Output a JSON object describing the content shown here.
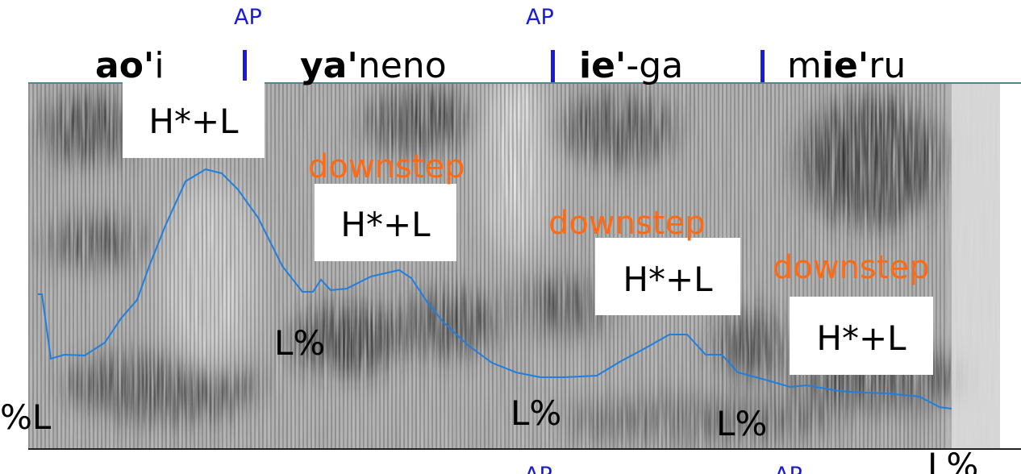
{
  "words": [
    {
      "parts": [
        {
          "text": "ao'",
          "bold": true
        },
        {
          "text": "i",
          "bold": false
        }
      ]
    },
    {
      "parts": [
        {
          "text": "ya'",
          "bold": true
        },
        {
          "text": "neno",
          "bold": false
        }
      ]
    },
    {
      "parts": [
        {
          "text": "ie'",
          "bold": true
        },
        {
          "text": "-ga",
          "bold": false
        }
      ]
    },
    {
      "parts": [
        {
          "text": "m",
          "bold": false
        },
        {
          "text": "ie'",
          "bold": true
        },
        {
          "text": "ru",
          "bold": false
        }
      ]
    }
  ],
  "ap_labels": [
    "AP",
    "AP",
    "AP",
    "AP"
  ],
  "accent_labels": [
    "H*+L",
    "H*+L",
    "H*+L",
    "H*+L"
  ],
  "downstep_labels": [
    "downstep",
    "downstep",
    "downstep"
  ],
  "boundary_labels": [
    "%L",
    "L%",
    "L%",
    "L%",
    "L%"
  ]
}
